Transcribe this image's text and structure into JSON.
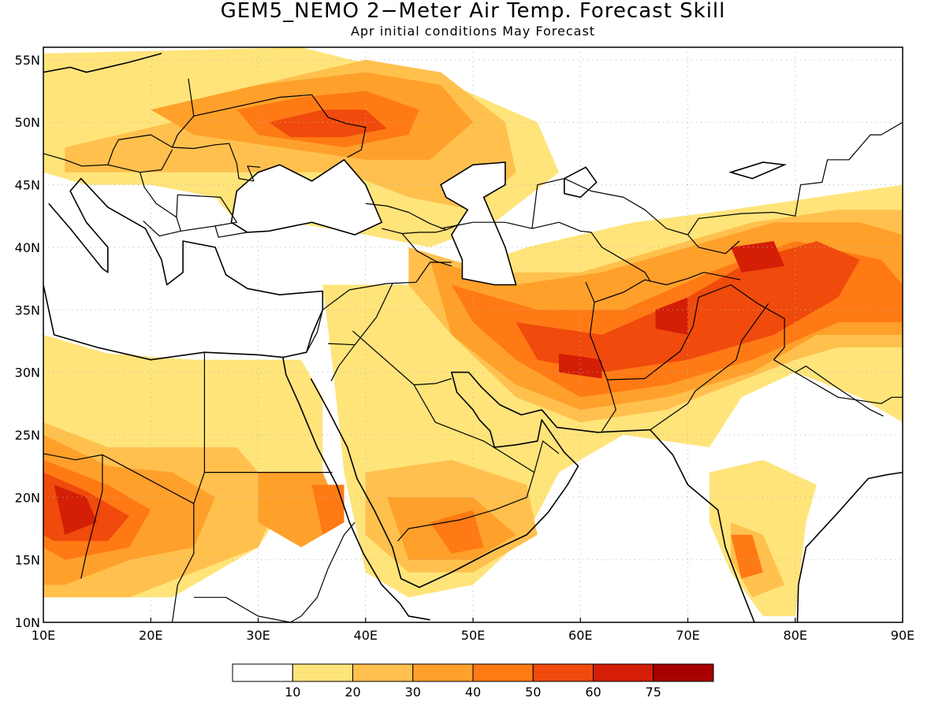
{
  "header": {
    "title": "GEM5_NEMO 2−Meter Air Temp. Forecast Skill",
    "subtitle": "Apr initial conditions   May Forecast"
  },
  "map": {
    "lon_range": [
      10,
      90
    ],
    "lat_range": [
      10,
      56
    ],
    "x_ticks": [
      "10E",
      "20E",
      "30E",
      "40E",
      "50E",
      "60E",
      "70E",
      "80E",
      "90E"
    ],
    "y_ticks": [
      "10N",
      "15N",
      "20N",
      "25N",
      "30N",
      "35N",
      "40N",
      "45N",
      "50N",
      "55N"
    ]
  },
  "legend": {
    "colors": [
      "#ffffff",
      "#ffe47a",
      "#ffc04e",
      "#ffa02a",
      "#ff7a14",
      "#f04a0c",
      "#d41e06",
      "#a80000"
    ],
    "labels": [
      "10",
      "20",
      "30",
      "40",
      "50",
      "60",
      "75"
    ]
  }
}
